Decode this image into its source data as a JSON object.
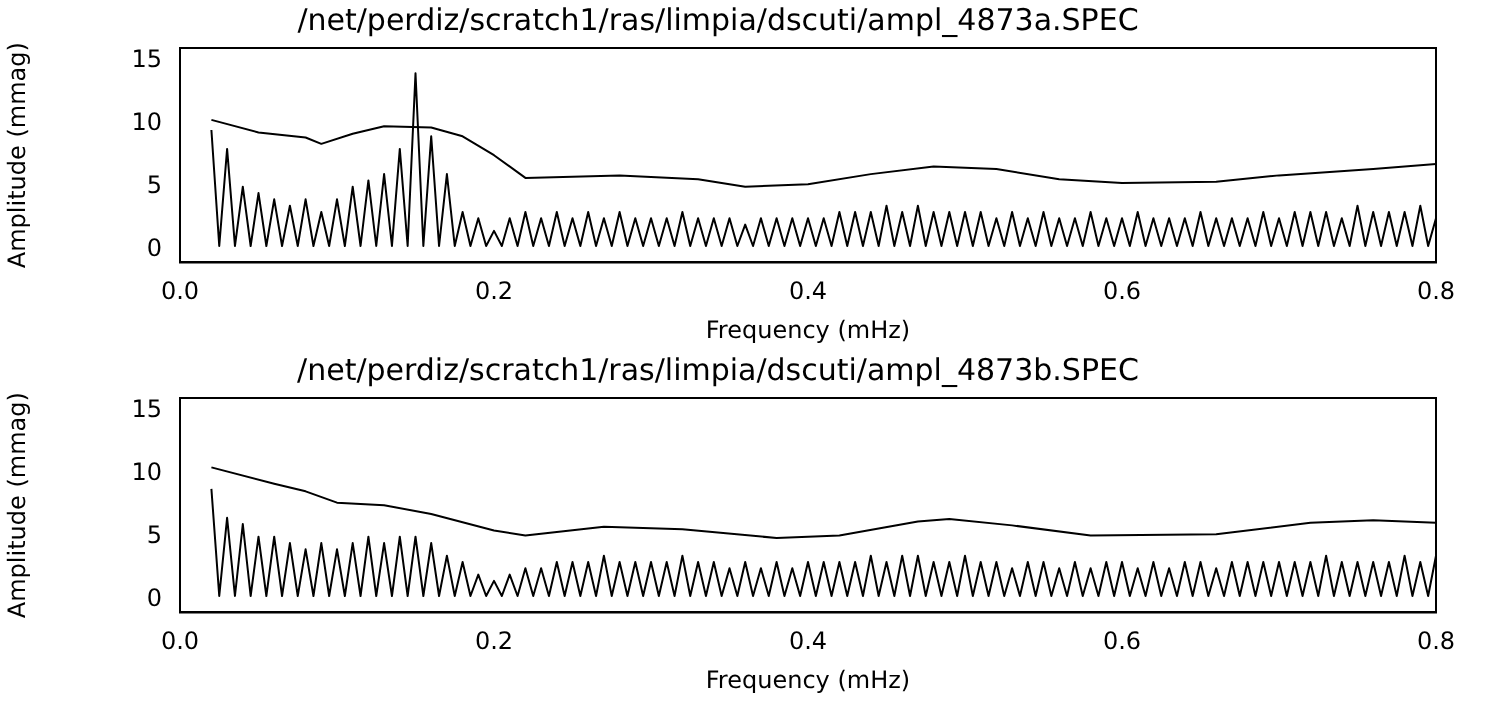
{
  "chart_data": [
    {
      "type": "line",
      "title": "/net/perdiz/scratch1/ras/limpia/dscuti/ampl_4873a.SPEC",
      "xlabel": "Frequency (mHz)",
      "ylabel": "Amplitude (mmag)",
      "xlim": [
        0,
        0.8
      ],
      "xticks": [
        {
          "value": 0,
          "label": "0.0"
        },
        0.2,
        0.4,
        0.6,
        0.8
      ],
      "ylim": [
        -1,
        16
      ],
      "yticks": [
        0,
        5,
        10,
        15
      ],
      "grid": false,
      "legend": false,
      "marker": "none",
      "series": [
        {
          "color": "#000000",
          "x": [
            0.02,
            0.025,
            0.03,
            0.035,
            0.04,
            0.045,
            0.05,
            0.055,
            0.06,
            0.065,
            0.07,
            0.075,
            0.08,
            0.085,
            0.09,
            0.095,
            0.1,
            0.105,
            0.11,
            0.115,
            0.12,
            0.125,
            0.13,
            0.135,
            0.14,
            0.145,
            0.15,
            0.155,
            0.16,
            0.165,
            0.17,
            0.175,
            0.18,
            0.185,
            0.19,
            0.195,
            0.2,
            0.205,
            0.21,
            0.215,
            0.22,
            0.225,
            0.23,
            0.235,
            0.24,
            0.245,
            0.25,
            0.255,
            0.26,
            0.265,
            0.27,
            0.275,
            0.28,
            0.285,
            0.29,
            0.295,
            0.3,
            0.305,
            0.31,
            0.315,
            0.32,
            0.325,
            0.33,
            0.335,
            0.34,
            0.345,
            0.35,
            0.355,
            0.36,
            0.365,
            0.37,
            0.375,
            0.38,
            0.385,
            0.39,
            0.395,
            0.4,
            0.405,
            0.41,
            0.415,
            0.42,
            0.425,
            0.43,
            0.435,
            0.44,
            0.445,
            0.45,
            0.455,
            0.46,
            0.465,
            0.47,
            0.475,
            0.48,
            0.485,
            0.49,
            0.495,
            0.5,
            0.505,
            0.51,
            0.515,
            0.52,
            0.525,
            0.53,
            0.535,
            0.54,
            0.545,
            0.55,
            0.555,
            0.56,
            0.565,
            0.57,
            0.575,
            0.58,
            0.585,
            0.59,
            0.595,
            0.6,
            0.605,
            0.61,
            0.615,
            0.62,
            0.625,
            0.63,
            0.635,
            0.64,
            0.645,
            0.65,
            0.655,
            0.66,
            0.665,
            0.67,
            0.675,
            0.68,
            0.685,
            0.69,
            0.695,
            0.7,
            0.705,
            0.71,
            0.715,
            0.72,
            0.725,
            0.73,
            0.735,
            0.74,
            0.745,
            0.75,
            0.755,
            0.76,
            0.765,
            0.77,
            0.775,
            0.78,
            0.785,
            0.79,
            0.795,
            0.8
          ],
          "values": [
            9.5,
            0.3,
            8,
            0.3,
            5,
            0.3,
            4.5,
            0.3,
            4,
            0.3,
            3.5,
            0.3,
            4,
            0.3,
            3,
            0.3,
            4,
            0.3,
            5,
            0.3,
            5.5,
            0.3,
            6,
            0.3,
            8,
            0.3,
            14,
            0.3,
            9,
            0.3,
            6,
            0.3,
            3,
            0.3,
            2.5,
            0.3,
            1.5,
            0.3,
            2.5,
            0.3,
            3,
            0.3,
            2.5,
            0.3,
            3,
            0.3,
            2.5,
            0.3,
            3,
            0.3,
            2.5,
            0.3,
            3,
            0.3,
            2.5,
            0.3,
            2.5,
            0.3,
            2.5,
            0.3,
            3,
            0.3,
            2.5,
            0.3,
            2.5,
            0.3,
            2.5,
            0.3,
            2,
            0.3,
            2.5,
            0.3,
            2.5,
            0.3,
            2.5,
            0.3,
            2.5,
            0.3,
            2.5,
            0.3,
            3,
            0.3,
            3,
            0.3,
            3,
            0.3,
            3.5,
            0.3,
            3,
            0.3,
            3.5,
            0.3,
            3,
            0.3,
            3,
            0.3,
            3,
            0.3,
            3,
            0.3,
            2.5,
            0.3,
            3,
            0.3,
            2.5,
            0.3,
            3,
            0.3,
            2.5,
            0.3,
            2.5,
            0.3,
            3,
            0.3,
            2.5,
            0.3,
            2.5,
            0.3,
            3,
            0.3,
            2.5,
            0.3,
            2.5,
            0.3,
            2.5,
            0.3,
            3,
            0.3,
            2.5,
            0.3,
            2.5,
            0.3,
            2.5,
            0.3,
            3,
            0.3,
            2.5,
            0.3,
            3,
            0.3,
            3,
            0.3,
            3,
            0.3,
            2.5,
            0.3,
            3.5,
            0.3,
            3,
            0.3,
            3,
            0.3,
            3,
            0.3,
            3.5,
            0.3,
            2.5
          ]
        },
        {
          "color": "#000000",
          "x": [
            0.02,
            0.05,
            0.08,
            0.09,
            0.11,
            0.13,
            0.16,
            0.18,
            0.2,
            0.22,
            0.28,
            0.33,
            0.36,
            0.4,
            0.44,
            0.48,
            0.52,
            0.56,
            0.6,
            0.66,
            0.7,
            0.76,
            0.8
          ],
          "values": [
            10.3,
            9.3,
            8.9,
            8.4,
            9.2,
            9.8,
            9.7,
            9.0,
            7.5,
            5.7,
            5.9,
            5.6,
            5.0,
            5.2,
            6.0,
            6.6,
            6.4,
            5.6,
            5.3,
            5.4,
            5.9,
            6.4,
            6.8
          ]
        }
      ]
    },
    {
      "type": "line",
      "title": "/net/perdiz/scratch1/ras/limpia/dscuti/ampl_4873b.SPEC",
      "xlabel": "Frequency (mHz)",
      "ylabel": "Amplitude (mmag)",
      "xlim": [
        0,
        0.8
      ],
      "xticks": [
        {
          "value": 0,
          "label": "0.0"
        },
        0.2,
        0.4,
        0.6,
        0.8
      ],
      "ylim": [
        -1,
        16
      ],
      "yticks": [
        0,
        5,
        10,
        15
      ],
      "grid": false,
      "legend": false,
      "marker": "none",
      "series": [
        {
          "color": "#000000",
          "x": [
            0.02,
            0.025,
            0.03,
            0.035,
            0.04,
            0.045,
            0.05,
            0.055,
            0.06,
            0.065,
            0.07,
            0.075,
            0.08,
            0.085,
            0.09,
            0.095,
            0.1,
            0.105,
            0.11,
            0.115,
            0.12,
            0.125,
            0.13,
            0.135,
            0.14,
            0.145,
            0.15,
            0.155,
            0.16,
            0.165,
            0.17,
            0.175,
            0.18,
            0.185,
            0.19,
            0.195,
            0.2,
            0.205,
            0.21,
            0.215,
            0.22,
            0.225,
            0.23,
            0.235,
            0.24,
            0.245,
            0.25,
            0.255,
            0.26,
            0.265,
            0.27,
            0.275,
            0.28,
            0.285,
            0.29,
            0.295,
            0.3,
            0.305,
            0.31,
            0.315,
            0.32,
            0.325,
            0.33,
            0.335,
            0.34,
            0.345,
            0.35,
            0.355,
            0.36,
            0.365,
            0.37,
            0.375,
            0.38,
            0.385,
            0.39,
            0.395,
            0.4,
            0.405,
            0.41,
            0.415,
            0.42,
            0.425,
            0.43,
            0.435,
            0.44,
            0.445,
            0.45,
            0.455,
            0.46,
            0.465,
            0.47,
            0.475,
            0.48,
            0.485,
            0.49,
            0.495,
            0.5,
            0.505,
            0.51,
            0.515,
            0.52,
            0.525,
            0.53,
            0.535,
            0.54,
            0.545,
            0.55,
            0.555,
            0.56,
            0.565,
            0.57,
            0.575,
            0.58,
            0.585,
            0.59,
            0.595,
            0.6,
            0.605,
            0.61,
            0.615,
            0.62,
            0.625,
            0.63,
            0.635,
            0.64,
            0.645,
            0.65,
            0.655,
            0.66,
            0.665,
            0.67,
            0.675,
            0.68,
            0.685,
            0.69,
            0.695,
            0.7,
            0.705,
            0.71,
            0.715,
            0.72,
            0.725,
            0.73,
            0.735,
            0.74,
            0.745,
            0.75,
            0.755,
            0.76,
            0.765,
            0.77,
            0.775,
            0.78,
            0.785,
            0.79,
            0.795,
            0.8
          ],
          "values": [
            8.8,
            0.3,
            6.5,
            0.3,
            6,
            0.3,
            5,
            0.3,
            5,
            0.3,
            4.5,
            0.3,
            4,
            0.3,
            4.5,
            0.3,
            4,
            0.3,
            4.5,
            0.3,
            5,
            0.3,
            4.5,
            0.3,
            5,
            0.3,
            5,
            0.3,
            4.5,
            0.3,
            3.5,
            0.3,
            3,
            0.3,
            2,
            0.3,
            1.5,
            0.3,
            2,
            0.3,
            2.5,
            0.3,
            2.5,
            0.3,
            3,
            0.3,
            3,
            0.3,
            3,
            0.3,
            3.5,
            0.3,
            3,
            0.3,
            3,
            0.3,
            3,
            0.3,
            3,
            0.3,
            3.5,
            0.3,
            3,
            0.3,
            3,
            0.3,
            2.5,
            0.3,
            3,
            0.3,
            2.5,
            0.3,
            3,
            0.3,
            2.5,
            0.3,
            3,
            0.3,
            3,
            0.3,
            3,
            0.3,
            3,
            0.3,
            3.5,
            0.3,
            3,
            0.3,
            3.5,
            0.3,
            3.5,
            0.3,
            3,
            0.3,
            3,
            0.3,
            3.5,
            0.3,
            3,
            0.3,
            3,
            0.3,
            2.5,
            0.3,
            3,
            0.3,
            3,
            0.3,
            2.5,
            0.3,
            3,
            0.3,
            2.5,
            0.3,
            3,
            0.3,
            3,
            0.3,
            2.5,
            0.3,
            3,
            0.3,
            2.5,
            0.3,
            3,
            0.3,
            3,
            0.3,
            2.5,
            0.3,
            3,
            0.3,
            3,
            0.3,
            3,
            0.3,
            3,
            0.3,
            3,
            0.3,
            3,
            0.3,
            3.5,
            0.3,
            3,
            0.3,
            3,
            0.3,
            3,
            0.3,
            3,
            0.3,
            3.5,
            0.3,
            3,
            0.3,
            3.5
          ]
        },
        {
          "color": "#000000",
          "x": [
            0.02,
            0.06,
            0.08,
            0.1,
            0.13,
            0.16,
            0.2,
            0.22,
            0.27,
            0.32,
            0.38,
            0.42,
            0.47,
            0.49,
            0.53,
            0.58,
            0.66,
            0.72,
            0.76,
            0.8
          ],
          "values": [
            10.5,
            9.2,
            8.6,
            7.7,
            7.5,
            6.8,
            5.5,
            5.1,
            5.8,
            5.6,
            4.9,
            5.1,
            6.2,
            6.4,
            5.9,
            5.1,
            5.2,
            6.1,
            6.3,
            6.1
          ]
        }
      ]
    }
  ]
}
